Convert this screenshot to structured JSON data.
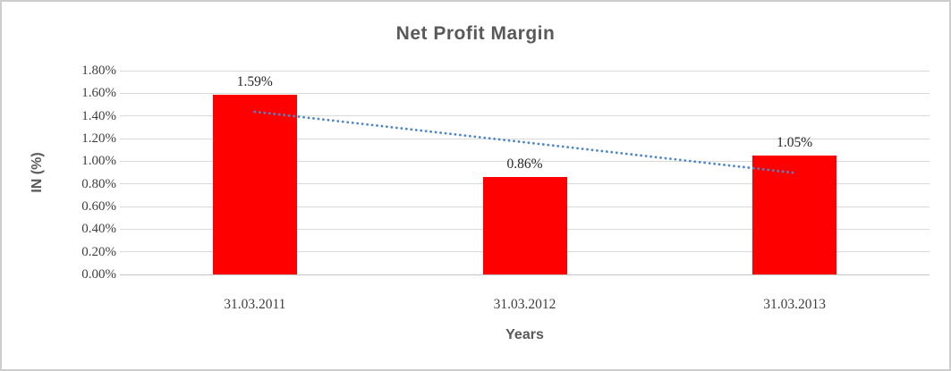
{
  "chart_data": {
    "type": "bar",
    "title": "Net Profit Margin",
    "xlabel": "Years",
    "ylabel": "IN (%)",
    "categories": [
      "31.03.2011",
      "31.03.2012",
      "31.03.2013"
    ],
    "values": [
      1.59,
      0.86,
      1.05
    ],
    "data_labels": [
      "1.59%",
      "0.86%",
      "1.05%"
    ],
    "ylim": [
      0,
      1.8
    ],
    "ytick_step": 0.2,
    "ytick_labels": [
      "0.00%",
      "0.20%",
      "0.40%",
      "0.60%",
      "0.80%",
      "1.00%",
      "1.20%",
      "1.40%",
      "1.60%",
      "1.80%"
    ],
    "grid": true,
    "legend_position": "none",
    "bar_color": "#FF0000",
    "trendline": {
      "type": "linear",
      "style": "dotted",
      "color": "#4E87C8",
      "start": {
        "category_index": 0,
        "value": 1.437
      },
      "end": {
        "category_index": 2,
        "value": 0.897
      }
    }
  },
  "colors": {
    "title_text": "#595959",
    "axis_title_text": "#595959",
    "tick_text": "#3F3F3F",
    "data_label_text": "#262626",
    "gridline": "#D9D9D9",
    "bar": "#FF0000",
    "trendline": "#4E87C8",
    "chart_border": "#CDCDCD",
    "background": "#FFFFFF"
  }
}
